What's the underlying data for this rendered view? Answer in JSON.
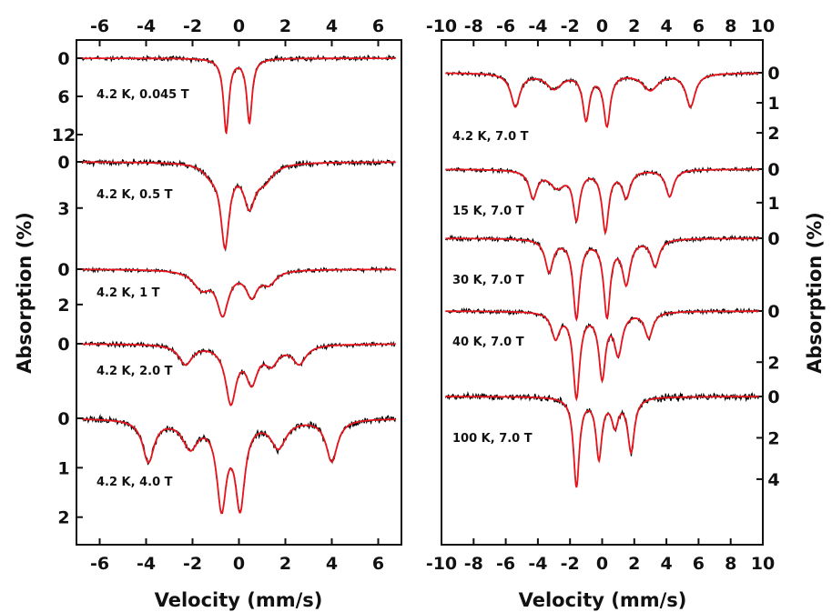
{
  "chart_data": [
    {
      "type": "line",
      "panel": "left",
      "xlabel": "Velocity (mm/s)",
      "ylabel": "Absorption (%)",
      "xlim": [
        -7,
        7
      ],
      "xticks": [
        "-6",
        "-4",
        "-2",
        "0",
        "2",
        "4",
        "6"
      ],
      "series_colors": {
        "data": "#000000",
        "fit": "#e8141c"
      },
      "spectra": [
        {
          "label": "4.2 K, 0.045 T",
          "ylim": [
            0,
            12
          ],
          "yticks": [
            "0",
            "6",
            "12"
          ],
          "lines": [
            {
              "center": -0.55,
              "depth": 11.5,
              "width": 0.14
            },
            {
              "center": 0.45,
              "depth": 10.0,
              "width": 0.14
            }
          ]
        },
        {
          "label": "4.2 K, 0.5 T",
          "ylim": [
            0,
            6.5
          ],
          "yticks": [
            "0",
            "3"
          ],
          "lines": [
            {
              "center": -0.6,
              "depth": 5.2,
              "width": 0.22
            },
            {
              "center": 0.45,
              "depth": 2.6,
              "width": 0.3
            },
            {
              "center": 1.1,
              "depth": 1.0,
              "width": 0.45
            },
            {
              "center": -1.2,
              "depth": 0.6,
              "width": 0.4
            }
          ]
        },
        {
          "label": "4.2 K, 1 T",
          "ylim": [
            0,
            3.6
          ],
          "yticks": [
            "0",
            "2"
          ],
          "lines": [
            {
              "center": -0.7,
              "depth": 2.4,
              "width": 0.3
            },
            {
              "center": 0.55,
              "depth": 1.4,
              "width": 0.3
            },
            {
              "center": -1.6,
              "depth": 1.0,
              "width": 0.45
            },
            {
              "center": 1.3,
              "depth": 0.7,
              "width": 0.35
            }
          ]
        },
        {
          "label": "4.2 K, 2.0 T",
          "ylim": [
            0,
            3.6
          ],
          "yticks": [
            "0"
          ],
          "lines": [
            {
              "center": -0.35,
              "depth": 2.6,
              "width": 0.28
            },
            {
              "center": 0.55,
              "depth": 1.6,
              "width": 0.3
            },
            {
              "center": -2.3,
              "depth": 0.9,
              "width": 0.35
            },
            {
              "center": 1.4,
              "depth": 0.8,
              "width": 0.35
            },
            {
              "center": 2.6,
              "depth": 0.85,
              "width": 0.35
            }
          ]
        },
        {
          "label": "4.2 K, 4.0 T",
          "ylim": [
            0,
            2.3
          ],
          "yticks": [
            "0",
            "1",
            "2"
          ],
          "lines": [
            {
              "center": -0.75,
              "depth": 1.7,
              "width": 0.25
            },
            {
              "center": 0.05,
              "depth": 1.7,
              "width": 0.25
            },
            {
              "center": -3.9,
              "depth": 0.85,
              "width": 0.3
            },
            {
              "center": 4.0,
              "depth": 0.85,
              "width": 0.3
            },
            {
              "center": -2.1,
              "depth": 0.55,
              "width": 0.4
            },
            {
              "center": 1.7,
              "depth": 0.55,
              "width": 0.4
            }
          ]
        }
      ]
    },
    {
      "type": "line",
      "panel": "right",
      "xlabel": "Velocity (mm/s)",
      "ylabel": "Absorption (%)",
      "xlim": [
        -10,
        10
      ],
      "xticks": [
        "-10",
        "-8",
        "-6",
        "-4",
        "-2",
        "0",
        "2",
        "4",
        "6",
        "8",
        "10"
      ],
      "series_colors": {
        "data": "#000000",
        "fit": "#e8141c"
      },
      "spectra": [
        {
          "label": "4.2 K, 7.0 T",
          "ylim": [
            0,
            2.3
          ],
          "yticks": [
            "0",
            "1",
            "2"
          ],
          "lines": [
            {
              "center": -5.4,
              "depth": 1.1,
              "width": 0.35
            },
            {
              "center": 5.5,
              "depth": 1.1,
              "width": 0.35
            },
            {
              "center": -1.0,
              "depth": 1.5,
              "width": 0.25
            },
            {
              "center": 0.3,
              "depth": 1.7,
              "width": 0.25
            },
            {
              "center": -3.0,
              "depth": 0.5,
              "width": 0.6
            },
            {
              "center": 3.0,
              "depth": 0.55,
              "width": 0.6
            }
          ]
        },
        {
          "label": "15 K, 7.0 T",
          "ylim": [
            0,
            1.9
          ],
          "yticks": [
            "0",
            "1"
          ],
          "lines": [
            {
              "center": -4.3,
              "depth": 0.8,
              "width": 0.3
            },
            {
              "center": 4.2,
              "depth": 0.8,
              "width": 0.3
            },
            {
              "center": -1.6,
              "depth": 1.4,
              "width": 0.25
            },
            {
              "center": 0.2,
              "depth": 1.8,
              "width": 0.25
            },
            {
              "center": 1.5,
              "depth": 0.8,
              "width": 0.3
            },
            {
              "center": -2.8,
              "depth": 0.5,
              "width": 0.6
            }
          ]
        },
        {
          "label": "30 K, 7.0 T",
          "ylim": [
            0,
            3.2
          ],
          "yticks": [
            "0"
          ],
          "lines": [
            {
              "center": -1.6,
              "depth": 2.9,
              "width": 0.25
            },
            {
              "center": 0.3,
              "depth": 2.8,
              "width": 0.25
            },
            {
              "center": -3.3,
              "depth": 1.2,
              "width": 0.3
            },
            {
              "center": 3.3,
              "depth": 1.0,
              "width": 0.3
            },
            {
              "center": 1.5,
              "depth": 1.6,
              "width": 0.3
            }
          ]
        },
        {
          "label": "40 K, 7.0 T",
          "ylim": [
            0,
            3.2
          ],
          "yticks": [
            "0",
            "2"
          ],
          "lines": [
            {
              "center": -1.6,
              "depth": 3.3,
              "width": 0.25
            },
            {
              "center": 0.0,
              "depth": 2.5,
              "width": 0.25
            },
            {
              "center": 1.0,
              "depth": 1.6,
              "width": 0.3
            },
            {
              "center": -2.9,
              "depth": 1.0,
              "width": 0.3
            },
            {
              "center": 2.9,
              "depth": 1.0,
              "width": 0.3
            }
          ]
        },
        {
          "label": "100 K, 7.0 T",
          "ylim": [
            0,
            5.5
          ],
          "yticks": [
            "0",
            "2",
            "4"
          ],
          "lines": [
            {
              "center": -1.6,
              "depth": 4.3,
              "width": 0.22
            },
            {
              "center": -0.2,
              "depth": 2.9,
              "width": 0.22
            },
            {
              "center": 1.8,
              "depth": 2.6,
              "width": 0.25
            },
            {
              "center": 0.8,
              "depth": 1.3,
              "width": 0.25
            }
          ]
        }
      ]
    }
  ]
}
